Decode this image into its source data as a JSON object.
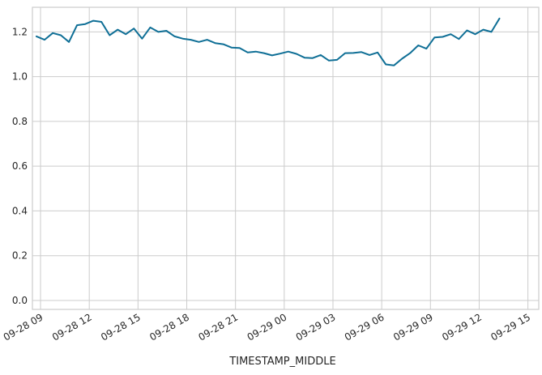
{
  "chart_data": {
    "type": "line",
    "xlabel": "TIMESTAMP_MIDDLE",
    "ylabel": "",
    "xlim": [
      "09-28 08:30",
      "09-29 15:40"
    ],
    "ylim": [
      -0.04,
      1.31
    ],
    "grid": true,
    "x_ticks": [
      "09-28 09",
      "09-28 12",
      "09-28 15",
      "09-28 18",
      "09-28 21",
      "09-29 00",
      "09-29 03",
      "09-29 06",
      "09-29 09",
      "09-29 12",
      "09-29 15"
    ],
    "y_ticks": [
      "0.0",
      "0.2",
      "0.4",
      "0.6",
      "0.8",
      "1.0",
      "1.2"
    ],
    "series": [
      {
        "color": "#0f6f96",
        "x": [
          "09-28 08:45",
          "09-28 09:15",
          "09-28 09:45",
          "09-28 10:15",
          "09-28 10:45",
          "09-28 11:15",
          "09-28 11:45",
          "09-28 12:15",
          "09-28 12:45",
          "09-28 13:15",
          "09-28 13:45",
          "09-28 14:15",
          "09-28 14:45",
          "09-28 15:15",
          "09-28 15:45",
          "09-28 16:15",
          "09-28 16:45",
          "09-28 17:15",
          "09-28 17:45",
          "09-28 18:15",
          "09-28 18:45",
          "09-28 19:15",
          "09-28 19:45",
          "09-28 20:15",
          "09-28 20:45",
          "09-28 21:15",
          "09-28 21:45",
          "09-28 22:15",
          "09-28 22:45",
          "09-28 23:15",
          "09-28 23:45",
          "09-29 00:15",
          "09-29 00:45",
          "09-29 01:15",
          "09-29 01:45",
          "09-29 02:15",
          "09-29 02:45",
          "09-29 03:15",
          "09-29 03:45",
          "09-29 04:15",
          "09-29 04:45",
          "09-29 05:15",
          "09-29 05:45",
          "09-29 06:15",
          "09-29 06:45",
          "09-29 07:15",
          "09-29 07:45",
          "09-29 08:15",
          "09-29 08:45",
          "09-29 09:15",
          "09-29 09:45",
          "09-29 10:15",
          "09-29 10:45",
          "09-29 11:15",
          "09-29 11:45",
          "09-29 12:15",
          "09-29 12:45",
          "09-29 13:15"
        ],
        "values": [
          1.18,
          1.165,
          1.195,
          1.185,
          1.155,
          1.23,
          1.235,
          1.25,
          1.245,
          1.185,
          1.21,
          1.19,
          1.215,
          1.17,
          1.22,
          1.2,
          1.205,
          1.18,
          1.17,
          1.165,
          1.155,
          1.165,
          1.15,
          1.145,
          1.13,
          1.128,
          1.108,
          1.112,
          1.105,
          1.095,
          1.103,
          1.112,
          1.102,
          1.085,
          1.083,
          1.097,
          1.072,
          1.075,
          1.105,
          1.106,
          1.11,
          1.097,
          1.108,
          1.055,
          1.05,
          1.08,
          1.105,
          1.14,
          1.125,
          1.175,
          1.178,
          1.19,
          1.168,
          1.207,
          1.19,
          1.21,
          1.2,
          1.26
        ]
      }
    ]
  }
}
